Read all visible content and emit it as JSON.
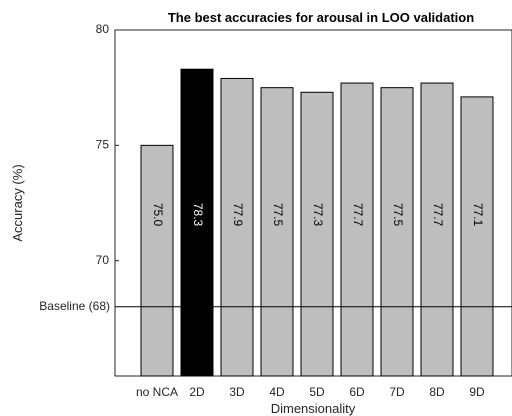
{
  "chart_data": {
    "type": "bar",
    "title": "The best accuracies for arousal in LOO validation",
    "xlabel": "Dimensionality",
    "ylabel": "Accuracy (%)",
    "categories": [
      "no NCA",
      "2D",
      "3D",
      "4D",
      "5D",
      "6D",
      "7D",
      "8D",
      "9D"
    ],
    "values": [
      75.0,
      78.3,
      77.9,
      77.5,
      77.3,
      77.7,
      77.5,
      77.7,
      77.1
    ],
    "value_labels": [
      "75.0",
      "78.3",
      "77.9",
      "77.5",
      "77.3",
      "77.7",
      "77.5",
      "77.7",
      "77.1"
    ],
    "highlight_index": 1,
    "ylim": [
      65,
      80
    ],
    "yticks": [
      70,
      75,
      80
    ],
    "ytick_labels": [
      "70",
      "75",
      "80"
    ],
    "baseline": {
      "value": 68,
      "label": "Baseline (68)"
    },
    "grid": false,
    "colors": {
      "bar": "#bebebe",
      "highlight_bar": "#000000",
      "bar_edge": "#000000",
      "label_on_bar": "#000000",
      "label_on_highlight": "#ffffff"
    }
  }
}
